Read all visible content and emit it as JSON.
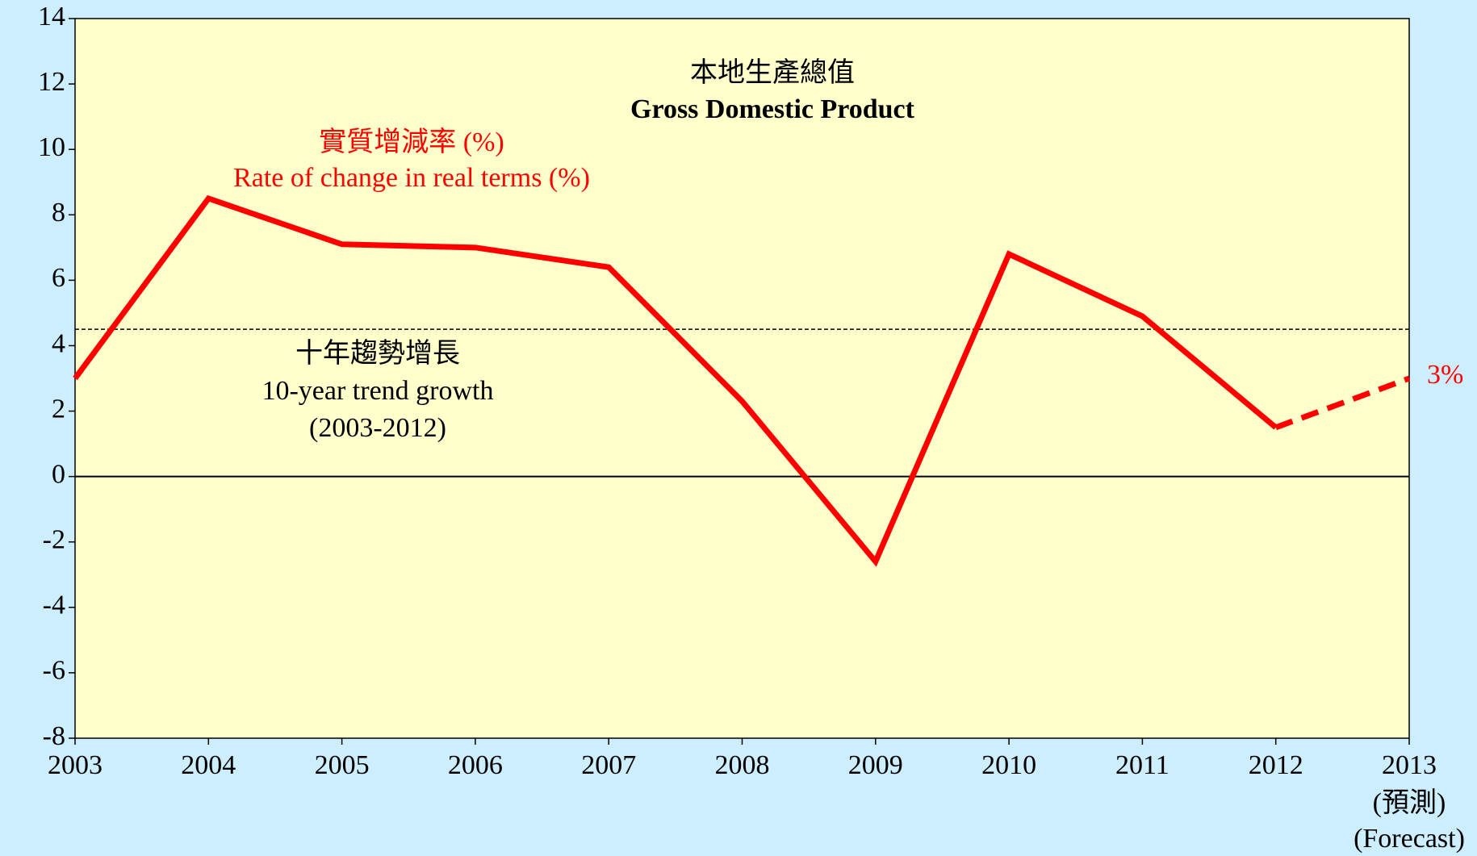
{
  "chart_data": {
    "type": "line",
    "title": [
      "本地生產總值",
      "Gross Domestic Product"
    ],
    "series_label": [
      "實質增減率 (%)",
      "Rate of change in real terms (%)"
    ],
    "x": [
      2003,
      2004,
      2005,
      2006,
      2007,
      2008,
      2009,
      2010,
      2011,
      2012,
      2013
    ],
    "series": [
      {
        "color": "#ff0000",
        "style": "solid",
        "values": [
          3.0,
          8.5,
          7.1,
          7.0,
          6.4,
          2.3,
          -2.6,
          6.8,
          4.9,
          1.5,
          null
        ]
      },
      {
        "color": "#ff0000",
        "style": "dashed",
        "values": [
          null,
          null,
          null,
          null,
          null,
          null,
          null,
          null,
          null,
          1.5,
          3
        ],
        "value_labels": [
          null,
          null,
          null,
          null,
          null,
          null,
          null,
          null,
          null,
          null,
          "3%"
        ]
      }
    ],
    "reference_line": {
      "value": 4.5,
      "label": [
        "十年趨勢增長",
        "10-year trend growth",
        "(2003-2012)"
      ]
    },
    "forecast_label": [
      "(預測)",
      "(Forecast)"
    ],
    "xlim": [
      2003,
      2013
    ],
    "xticks": [
      2003,
      2004,
      2005,
      2006,
      2007,
      2008,
      2009,
      2010,
      2011,
      2012,
      2013
    ],
    "ylim": [
      -8,
      14
    ],
    "yticks": [
      -8,
      -6,
      -4,
      -2,
      0,
      2,
      4,
      6,
      8,
      10,
      12,
      14
    ],
    "grid": false
  }
}
